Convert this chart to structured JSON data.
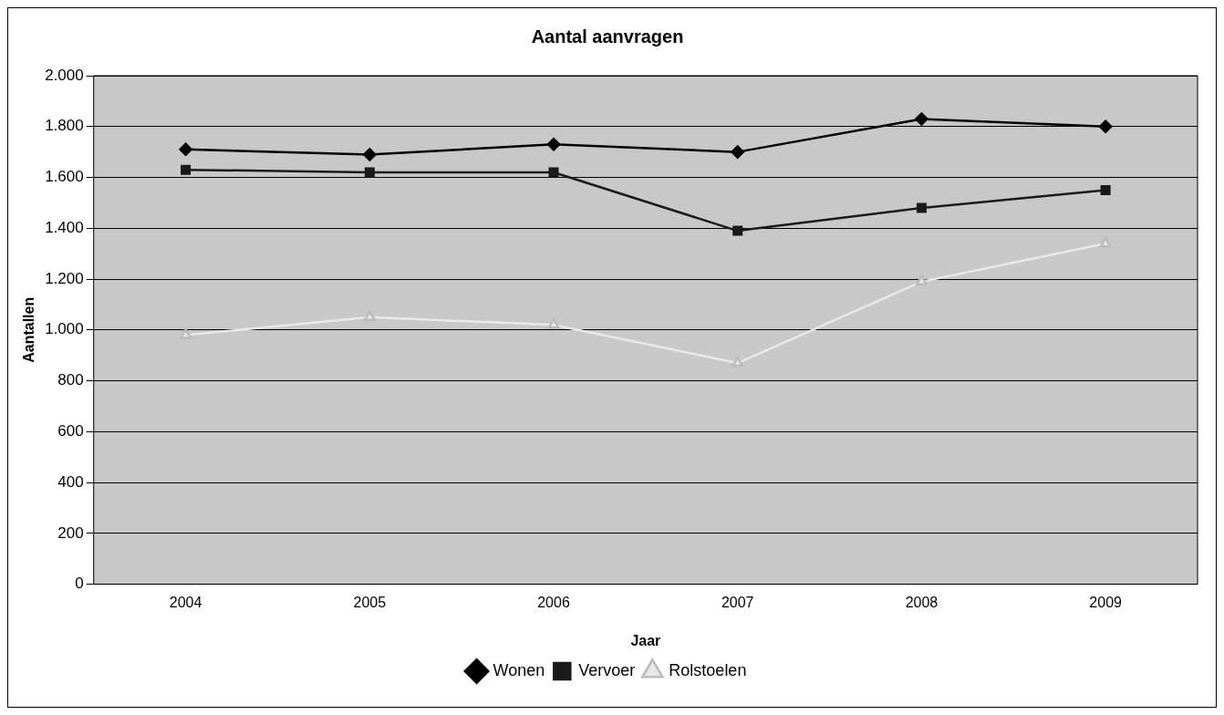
{
  "chart_data": {
    "type": "line",
    "title": "Aantal aanvragen",
    "xlabel": "Jaar",
    "ylabel": "Aantallen",
    "categories": [
      "2004",
      "2005",
      "2006",
      "2007",
      "2008",
      "2009"
    ],
    "series": [
      {
        "name": "Wonen",
        "color": "#000000",
        "marker": "diamond",
        "values": [
          1710,
          1690,
          1730,
          1700,
          1830,
          1800
        ]
      },
      {
        "name": "Vervoer",
        "color": "#1a1a1a",
        "marker": "square",
        "values": [
          1630,
          1620,
          1620,
          1390,
          1480,
          1550
        ]
      },
      {
        "name": "Rolstoelen",
        "color": "#e8e8e8",
        "marker": "triangle",
        "values": [
          980,
          1050,
          1020,
          870,
          1190,
          1340
        ]
      }
    ],
    "ylim": [
      0,
      2000
    ],
    "yticks": [
      {
        "value": 0,
        "label": "0"
      },
      {
        "value": 200,
        "label": "200"
      },
      {
        "value": 400,
        "label": "400"
      },
      {
        "value": 600,
        "label": "600"
      },
      {
        "value": 800,
        "label": "800"
      },
      {
        "value": 1000,
        "label": "1.000"
      },
      {
        "value": 1200,
        "label": "1.200"
      },
      {
        "value": 1400,
        "label": "1.400"
      },
      {
        "value": 1600,
        "label": "1.600"
      },
      {
        "value": 1800,
        "label": "1.800"
      },
      {
        "value": 2000,
        "label": "2.000"
      }
    ],
    "grid": "y",
    "legend": "bottom",
    "line_style": "solid"
  }
}
